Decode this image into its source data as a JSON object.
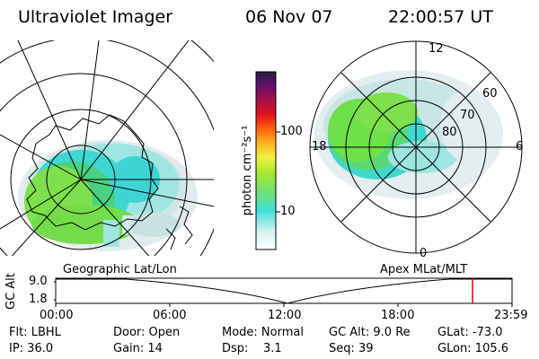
{
  "header": {
    "instrument": "Ultraviolet Imager",
    "date": "06 Nov 07",
    "time": "22:00:57 UT"
  },
  "colorbar": {
    "unit_label": "photon cm⁻²s⁻¹",
    "ticks": [
      "100",
      "10"
    ]
  },
  "polar_plot": {
    "mlt_labels": {
      "top": "12",
      "left": "18",
      "right": "6",
      "bottom": "0"
    },
    "lat_labels": [
      "60",
      "70",
      "80"
    ]
  },
  "panel_labels": {
    "left": "Geographic Lat/Lon",
    "right": "Apex MLat/MLT"
  },
  "timeline": {
    "y_label": "GC Alt",
    "y_ticks": [
      "9.0",
      "1.8"
    ],
    "x_ticks": [
      "00:00",
      "06:00",
      "12:00",
      "18:00",
      "23:59"
    ],
    "current_time_marker_color": "#e00000"
  },
  "status": {
    "flt": "Flt: LBHL",
    "ip": "IP: 36.0",
    "door": "Door: Open",
    "gain": "Gain: 14",
    "mode": "Mode: Normal",
    "dsp": "Dsp:    3.1",
    "gc_alt": "GC Alt: 9.0 Re",
    "seq": "Seq: 39",
    "glat": "GLat: -73.0",
    "glon": "GLon: 105.6"
  }
}
